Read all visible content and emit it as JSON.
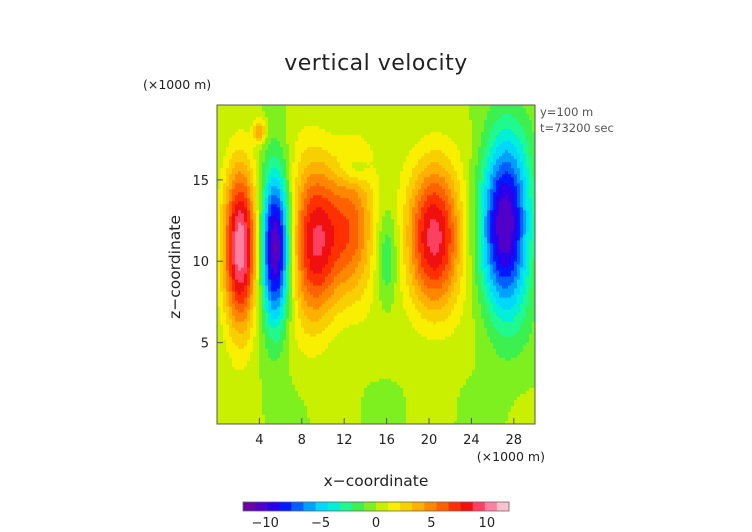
{
  "chart_data": {
    "type": "heatmap",
    "title": "vertical velocity",
    "xlabel": "x−coordinate",
    "ylabel": "z−coordinate",
    "x_unit": "(×1000 m)",
    "y_unit": "(×1000 m)",
    "info_lines": [
      "y=100 m",
      "t=73200 sec"
    ],
    "xlim": [
      0,
      30
    ],
    "ylim": [
      0,
      19.6
    ],
    "x_ticks": [
      4,
      8,
      12,
      16,
      20,
      24,
      28
    ],
    "y_ticks": [
      5,
      10,
      15
    ],
    "colorbar": {
      "range": [
        -12,
        12
      ],
      "ticks": [
        -10,
        -5,
        0,
        5,
        10
      ],
      "tick_labels": [
        "−10",
        "−5",
        "0",
        "5",
        "10"
      ],
      "colors": [
        "#6a00a8",
        "#5000c8",
        "#2a00e8",
        "#0018ff",
        "#0060ff",
        "#00a0ff",
        "#00d8ff",
        "#00f0d8",
        "#20f890",
        "#3cf050",
        "#7ef020",
        "#c8f000",
        "#f8f000",
        "#f8d000",
        "#ffb000",
        "#ff8800",
        "#ff6000",
        "#ff3000",
        "#f01010",
        "#ff4060",
        "#ff80a0",
        "#ffc0d0"
      ]
    },
    "features": [
      {
        "name": "updraft-1",
        "x": 2.2,
        "z": 10.8,
        "sx": 1.1,
        "sz": 3.6,
        "value": 10.5
      },
      {
        "name": "downdraft-1",
        "x": 5.5,
        "z": 10.8,
        "sx": 0.95,
        "sz": 3.3,
        "value": -11.5
      },
      {
        "name": "updraft-2",
        "x": 9.2,
        "z": 11.2,
        "sx": 1.6,
        "sz": 3.5,
        "value": 8.5
      },
      {
        "name": "updraft-2b",
        "x": 12.8,
        "z": 12.0,
        "sx": 1.6,
        "sz": 3.2,
        "value": 5.5
      },
      {
        "name": "downdraft-weak",
        "x": 16.0,
        "z": 10.2,
        "sx": 0.7,
        "sz": 2.0,
        "value": -2.5
      },
      {
        "name": "updraft-3",
        "x": 20.5,
        "z": 11.5,
        "sx": 1.8,
        "sz": 3.3,
        "value": 9.0
      },
      {
        "name": "downdraft-2",
        "x": 27.2,
        "z": 12.2,
        "sx": 1.6,
        "sz": 3.8,
        "value": -11.0
      },
      {
        "name": "updraft-top",
        "x": 4.0,
        "z": 18.0,
        "sx": 0.4,
        "sz": 0.5,
        "value": 4.5
      },
      {
        "name": "downdraft-top",
        "x": 13.0,
        "z": 15.6,
        "sx": 1.0,
        "sz": 0.6,
        "value": -2.0
      }
    ]
  }
}
